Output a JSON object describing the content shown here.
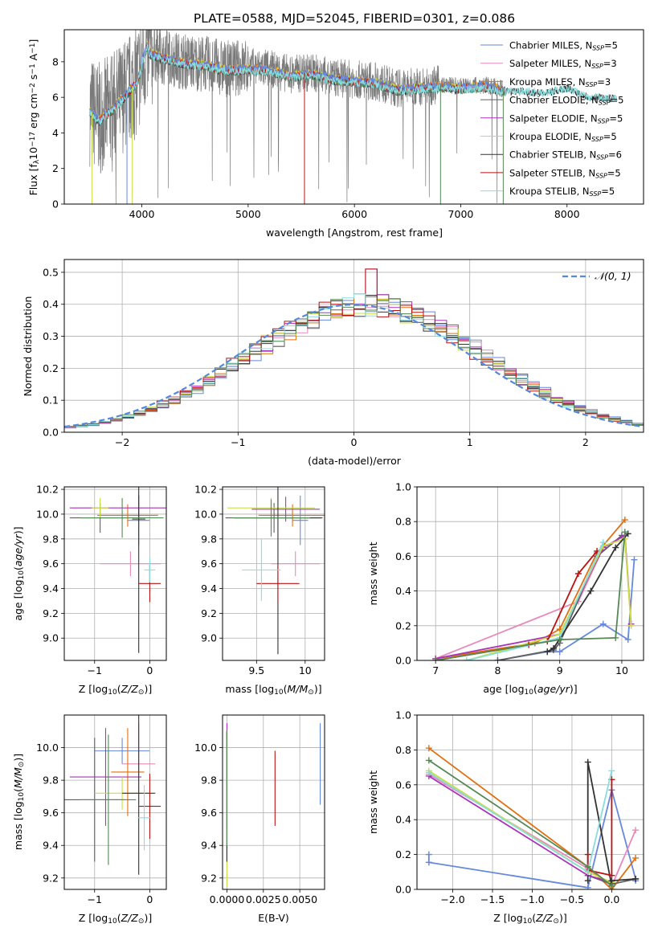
{
  "title": "PLATE=0588, MJD=52045, FIBERID=0301, z=0.086",
  "colors": [
    "#6688dd",
    "#e888bb",
    "#e07010",
    "#606060",
    "#aa33bb",
    "#ccdd44",
    "#333333",
    "#bb1111",
    "#88dddd",
    "#558855"
  ],
  "chart_data": [
    {
      "id": "spectrum",
      "type": "line",
      "title": "PLATE=0588, MJD=52045, FIBERID=0301, z=0.086",
      "xlabel": "wavelength [Angstrom, rest frame]",
      "ylabel": "Flux [fλ10⁻¹⁷ erg cm⁻² s⁻¹ A⁻¹]",
      "xlim": [
        3270,
        8720
      ],
      "ylim": [
        0,
        9.8
      ],
      "xticks": [
        4000,
        5000,
        6000,
        7000,
        8000
      ],
      "yticks": [
        0,
        2,
        4,
        6,
        8
      ],
      "data_range": [
        3510,
        8470
      ],
      "continuum": {
        "x": [
          3510,
          3600,
          3700,
          3800,
          3950,
          4050,
          4200,
          4400,
          4600,
          4800,
          5000,
          5200,
          5400,
          5600,
          5800,
          6000,
          6200,
          6400,
          6600,
          6800,
          7000,
          7200,
          7400,
          7600,
          7800,
          8000,
          8200,
          8470
        ],
        "y": [
          5.3,
          4.8,
          5.3,
          5.9,
          6.9,
          8.6,
          8.3,
          8.0,
          7.9,
          7.6,
          7.7,
          7.6,
          7.3,
          7.4,
          7.1,
          7.0,
          6.9,
          6.5,
          6.6,
          6.7,
          6.6,
          6.7,
          6.5,
          6.5,
          6.4,
          6.7,
          6.2,
          6.1
        ]
      },
      "legend": {
        "placement": "upper right",
        "entries": [
          {
            "label": "Chabrier MILES, N",
            "sub": "SSP",
            "suffix": "=5",
            "color": "#6688dd"
          },
          {
            "label": "Salpeter MILES, N",
            "sub": "SSP",
            "suffix": "=3",
            "color": "#e888bb"
          },
          {
            "label": "Kroupa MILES, N",
            "sub": "SSP",
            "suffix": "=3",
            "color": "#e07010"
          },
          {
            "label": "Chabrier ELODIE, N",
            "sub": "SSP",
            "suffix": "=5",
            "color": "#606060"
          },
          {
            "label": "Salpeter ELODIE, N",
            "sub": "SSP",
            "suffix": "=5",
            "color": "#aa33bb"
          },
          {
            "label": "Kroupa ELODIE, N",
            "sub": "SSP",
            "suffix": "=5",
            "color": "#ccdd44"
          },
          {
            "label": "Chabrier STELIB, N",
            "sub": "SSP",
            "suffix": "=6",
            "color": "#333333"
          },
          {
            "label": "Salpeter STELIB, N",
            "sub": "SSP",
            "suffix": "=5",
            "color": "#bb1111"
          },
          {
            "label": "Kroupa STELIB, N",
            "sub": "SSP",
            "suffix": "=5",
            "color": "#88dddd"
          }
        ]
      },
      "grid": false
    },
    {
      "id": "residual-hist",
      "type": "step",
      "xlabel": "(data-model)/error",
      "ylabel": "Normed distribution",
      "xlim": [
        -2.5,
        2.5
      ],
      "ylim": [
        0,
        0.54
      ],
      "xticks": [
        -2,
        -1,
        0,
        1,
        2
      ],
      "yticks": [
        0.0,
        0.1,
        0.2,
        0.3,
        0.4,
        0.5
      ],
      "ytick_labels": [
        "0.0",
        "0.1",
        "0.2",
        "0.3",
        "0.4",
        "0.5"
      ],
      "bin_width": 0.1,
      "legend": {
        "placement": "upper right",
        "label": "𝒩(0, 1)",
        "color": "#5588dd"
      },
      "gaussian": {
        "mean": 0,
        "sigma": 1
      },
      "grid": true
    },
    {
      "id": "age-vs-z",
      "type": "errorbar",
      "xlabel": "Z [log10(Z/Z⊙)]",
      "ylabel": "age [log10(age/yr)]",
      "xlim": [
        -1.55,
        0.3
      ],
      "ylim": [
        8.82,
        10.22
      ],
      "xticks": [
        -1,
        0
      ],
      "yticks": [
        9.0,
        9.2,
        9.4,
        9.6,
        9.8,
        10.0,
        10.2
      ],
      "grid": true,
      "points": [
        {
          "x": -0.2,
          "y": 9.95,
          "xerr": 0.2,
          "yerr": 0.2,
          "c": 0
        },
        {
          "x": -0.35,
          "y": 9.6,
          "xerr": 0.55,
          "yerr": 0.1,
          "c": 1
        },
        {
          "x": -0.4,
          "y": 9.99,
          "xerr": 0.55,
          "yerr": 0.09,
          "c": 2
        },
        {
          "x": -0.9,
          "y": 9.97,
          "xerr": 0.55,
          "yerr": 0.12,
          "c": 3
        },
        {
          "x": -0.2,
          "y": 10.05,
          "xerr": 1.25,
          "yerr": 0.1,
          "c": 4
        },
        {
          "x": -0.9,
          "y": 10.05,
          "xerr": 0.15,
          "yerr": 0.08,
          "c": 5
        },
        {
          "x": -0.2,
          "y": 9.96,
          "xerr": 0.12,
          "yerr": 1.08,
          "c": 6
        },
        {
          "x": 0.0,
          "y": 9.44,
          "xerr": 0.2,
          "yerr": 0.15,
          "c": 7
        },
        {
          "x": 0.0,
          "y": 9.55,
          "xerr": 0.1,
          "yerr": 0.1,
          "c": 8
        },
        {
          "x": -0.5,
          "y": 9.97,
          "xerr": 0.75,
          "yerr": 0.16,
          "c": 9
        }
      ]
    },
    {
      "id": "age-vs-mass",
      "type": "errorbar",
      "xlabel": "mass [log10(M/M⊙)]",
      "ylabel": "",
      "xlim": [
        9.15,
        10.2
      ],
      "ylim": [
        8.82,
        10.22
      ],
      "xticks": [
        9.5,
        10.0
      ],
      "yticks": [
        9.0,
        9.2,
        9.4,
        9.6,
        9.8,
        10.0,
        10.2
      ],
      "grid": true,
      "points": [
        {
          "x": 9.95,
          "y": 9.95,
          "xerr": 0.08,
          "yerr": 0.2,
          "c": 0
        },
        {
          "x": 9.9,
          "y": 9.6,
          "xerr": 0.25,
          "yerr": 0.1,
          "c": 1
        },
        {
          "x": 9.87,
          "y": 9.99,
          "xerr": 0.35,
          "yerr": 0.09,
          "c": 2
        },
        {
          "x": 9.68,
          "y": 9.97,
          "xerr": 0.5,
          "yerr": 0.12,
          "c": 3
        },
        {
          "x": 9.8,
          "y": 10.04,
          "xerr": 0.35,
          "yerr": 0.1,
          "c": 4
        },
        {
          "x": 9.65,
          "y": 10.05,
          "xerr": 0.45,
          "yerr": 0.08,
          "c": 5
        },
        {
          "x": 9.72,
          "y": 9.97,
          "xerr": 0.45,
          "yerr": 1.1,
          "c": 6
        },
        {
          "x": 9.72,
          "y": 9.44,
          "xerr": 0.22,
          "yerr": 0.15,
          "c": 7
        },
        {
          "x": 9.55,
          "y": 9.55,
          "xerr": 0.2,
          "yerr": 0.25,
          "c": 8
        },
        {
          "x": 9.65,
          "y": 9.97,
          "xerr": 0.4,
          "yerr": 0.15,
          "c": 9
        }
      ]
    },
    {
      "id": "massweight-vs-age",
      "type": "line",
      "xlabel": "age  [log10(age/yr)]",
      "ylabel": "mass weight",
      "xlim": [
        6.7,
        10.35
      ],
      "ylim": [
        0,
        1.0
      ],
      "xticks": [
        7,
        8,
        9,
        10
      ],
      "yticks": [
        0.0,
        0.2,
        0.4,
        0.6,
        0.8,
        1.0
      ],
      "grid": true,
      "series": [
        {
          "c": 0,
          "x": [
            8.0,
            8.8,
            9.0,
            9.7,
            10.1,
            10.2
          ],
          "y": [
            0.0,
            0.05,
            0.05,
            0.21,
            0.12,
            0.58
          ]
        },
        {
          "c": 1,
          "x": [
            7.0,
            9.3,
            9.7
          ],
          "y": [
            0.01,
            0.34,
            0.65
          ]
        },
        {
          "c": 2,
          "x": [
            7.0,
            8.6,
            9.0,
            9.6,
            10.05
          ],
          "y": [
            0.01,
            0.1,
            0.18,
            0.62,
            0.81
          ]
        },
        {
          "c": 3,
          "x": [
            8.0,
            8.9,
            9.0,
            9.6,
            10.0
          ],
          "y": [
            0.0,
            0.06,
            0.1,
            0.6,
            0.72
          ]
        },
        {
          "c": 4,
          "x": [
            7.0,
            9.0,
            9.7,
            10.05,
            10.15
          ],
          "y": [
            0.01,
            0.15,
            0.65,
            0.72,
            0.21
          ]
        },
        {
          "c": 5,
          "x": [
            7.5,
            9.0,
            9.7,
            10.05,
            10.15
          ],
          "y": [
            0.0,
            0.15,
            0.66,
            0.7,
            0.2
          ]
        },
        {
          "c": 6,
          "x": [
            8.8,
            8.9,
            9.5,
            9.9,
            10.1
          ],
          "y": [
            0.05,
            0.07,
            0.4,
            0.65,
            0.73
          ]
        },
        {
          "c": 7,
          "x": [
            7.0,
            8.5,
            8.8,
            9.3,
            9.6
          ],
          "y": [
            0.0,
            0.09,
            0.11,
            0.5,
            0.63
          ]
        },
        {
          "c": 8,
          "x": [
            7.5,
            9.0,
            9.7
          ],
          "y": [
            0.0,
            0.13,
            0.68
          ]
        },
        {
          "c": 9,
          "x": [
            7.0,
            9.0,
            9.9,
            10.05
          ],
          "y": [
            0.0,
            0.12,
            0.13,
            0.74
          ]
        }
      ]
    },
    {
      "id": "mass-vs-z",
      "type": "errorbar",
      "xlabel": "Z [log10(Z/Z⊙)]",
      "ylabel": "mass [log10(M/M⊙)]",
      "xlim": [
        -1.55,
        0.3
      ],
      "ylim": [
        9.13,
        10.2
      ],
      "xticks": [
        -1,
        0
      ],
      "yticks": [
        9.2,
        9.4,
        9.6,
        9.8,
        10.0
      ],
      "grid": true,
      "points": [
        {
          "x": -0.5,
          "y": 9.98,
          "xerr": 0.5,
          "yerr": 0.08,
          "c": 0
        },
        {
          "x": -0.2,
          "y": 9.9,
          "xerr": 0.3,
          "yerr": 0.25,
          "c": 1
        },
        {
          "x": -0.4,
          "y": 9.85,
          "xerr": 0.3,
          "yerr": 0.27,
          "c": 2
        },
        {
          "x": -1.0,
          "y": 9.68,
          "xerr": 0.55,
          "yerr": 0.38,
          "c": 3
        },
        {
          "x": -0.8,
          "y": 9.82,
          "xerr": 0.65,
          "yerr": 0.3,
          "c": 4
        },
        {
          "x": -0.5,
          "y": 9.72,
          "xerr": 0.5,
          "yerr": 0.1,
          "c": 5
        },
        {
          "x": -0.2,
          "y": 9.72,
          "xerr": 0.3,
          "yerr": 0.5,
          "c": 6
        },
        {
          "x": 0.0,
          "y": 9.64,
          "xerr": 0.2,
          "yerr": 0.2,
          "c": 7
        },
        {
          "x": -0.1,
          "y": 9.57,
          "xerr": 0.12,
          "yerr": 0.2,
          "c": 8
        },
        {
          "x": -0.75,
          "y": 9.68,
          "xerr": 0.5,
          "yerr": 0.4,
          "c": 9
        }
      ]
    },
    {
      "id": "mass-vs-ebv",
      "type": "errorbar",
      "xlabel": "E(B-V)",
      "ylabel": "",
      "xlim": [
        -0.0003,
        0.0067
      ],
      "ylim": [
        9.13,
        10.2
      ],
      "xticks": [
        0.0,
        0.0025,
        0.005
      ],
      "xtick_labels": [
        "0.0000",
        "0.0025",
        "0.0050"
      ],
      "yticks": [
        9.2,
        9.4,
        9.6,
        9.8,
        10.0
      ],
      "grid": true,
      "points": [
        {
          "x": 0.0064,
          "y": 9.9,
          "xerr": 0,
          "yerr": 0.25,
          "c": 0
        },
        {
          "x": 0.0,
          "y": 9.8,
          "xerr": 0,
          "yerr": 0.3,
          "c": 1
        },
        {
          "x": 0.0,
          "y": 9.8,
          "xerr": 0,
          "yerr": 0.3,
          "c": 2
        },
        {
          "x": 0.0,
          "y": 9.7,
          "xerr": 0,
          "yerr": 0.4,
          "c": 3
        },
        {
          "x": 0.0,
          "y": 9.95,
          "xerr": 0,
          "yerr": 0.2,
          "c": 4
        },
        {
          "x": 0.0,
          "y": 9.6,
          "xerr": 0,
          "yerr": 0.45,
          "c": 5
        },
        {
          "x": 0.0,
          "y": 9.7,
          "xerr": 0,
          "yerr": 0.4,
          "c": 6
        },
        {
          "x": 0.0033,
          "y": 9.75,
          "xerr": 0,
          "yerr": 0.23,
          "c": 7
        },
        {
          "x": 0.0,
          "y": 9.7,
          "xerr": 0,
          "yerr": 0.3,
          "c": 8
        },
        {
          "x": 0.0,
          "y": 9.75,
          "xerr": 0,
          "yerr": 0.35,
          "c": 9
        }
      ]
    },
    {
      "id": "massweight-vs-z",
      "type": "line",
      "xlabel": "Z [log10(Z/Z⊙)]",
      "ylabel": "mass weight",
      "xlim": [
        -2.45,
        0.4
      ],
      "ylim": [
        0,
        1.0
      ],
      "xticks": [
        -2.0,
        -1.5,
        -1.0,
        -0.5,
        0.0
      ],
      "xtick_labels": [
        "−2.0",
        "−1.5",
        "−1.0",
        "−0.5",
        "0.0"
      ],
      "yticks": [
        0.0,
        0.2,
        0.4,
        0.6,
        0.8,
        1.0
      ],
      "grid": true,
      "series": [
        {
          "c": 0,
          "x": [
            -2.3,
            -2.3,
            -0.3,
            0.0,
            0.3,
            0.3
          ],
          "y": [
            0.2,
            0.155,
            0.01,
            0.57,
            0.06,
            0.05
          ]
        },
        {
          "c": 1,
          "x": [
            -2.3,
            -0.3,
            0.0,
            0.3
          ],
          "y": [
            0.66,
            0.12,
            0.02,
            0.34
          ]
        },
        {
          "c": 2,
          "x": [
            -2.3,
            -0.3,
            0.0,
            0.3
          ],
          "y": [
            0.81,
            0.13,
            0.0,
            0.18
          ]
        },
        {
          "c": 3,
          "x": [
            -0.3,
            0.0,
            0.3
          ],
          "y": [
            0.08,
            0.03,
            0.06
          ]
        },
        {
          "c": 4,
          "x": [
            -2.3,
            -0.3,
            0.0
          ],
          "y": [
            0.65,
            0.08,
            0.04
          ]
        },
        {
          "c": 5,
          "x": [
            -2.3,
            -0.3,
            0.0
          ],
          "y": [
            0.68,
            0.1,
            0.04
          ]
        },
        {
          "c": 6,
          "x": [
            -0.3,
            -0.3,
            0.0,
            0.0,
            0.3
          ],
          "y": [
            0.05,
            0.73,
            0.02,
            0.05,
            0.06
          ]
        },
        {
          "c": 7,
          "x": [
            -0.3,
            -0.3,
            0.0,
            0.0
          ],
          "y": [
            0.2,
            0.11,
            0.08,
            0.63
          ]
        },
        {
          "c": 8,
          "x": [
            -2.3,
            -0.3,
            0.0
          ],
          "y": [
            0.67,
            0.1,
            0.68
          ]
        },
        {
          "c": 9,
          "x": [
            -2.3,
            -0.3,
            0.0
          ],
          "y": [
            0.74,
            0.13,
            0.02
          ]
        }
      ]
    }
  ]
}
